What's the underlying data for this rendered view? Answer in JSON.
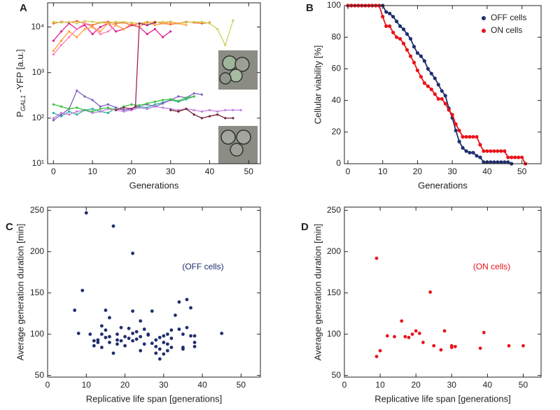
{
  "chart_data": [
    {
      "type": "line",
      "panel": "A",
      "x_label": "Generations",
      "y_label": {
        "main": "P",
        "subscript": "GAL1",
        "rest": " -YFP  [a.u.]"
      },
      "ylog": true,
      "xlim": [
        -1.5,
        53
      ],
      "ylim": [
        10,
        34000
      ],
      "xticks": [
        0,
        10,
        20,
        30,
        40,
        50
      ],
      "yticks": [
        {
          "value": 10,
          "label": "10¹"
        },
        {
          "value": 100,
          "label": "10²"
        },
        {
          "value": 1000,
          "label": "10³"
        },
        {
          "value": 10000,
          "label": "10⁴"
        }
      ],
      "series": [
        {
          "color": "#f07020",
          "x": [
            0,
            2,
            4,
            6,
            8,
            10,
            12,
            14,
            16,
            18,
            20,
            22,
            24,
            26,
            28,
            30,
            32,
            34,
            36,
            38,
            40
          ],
          "values": [
            12000,
            13000,
            12500,
            13500,
            12000,
            11000,
            12500,
            13000,
            12000,
            12500,
            11000,
            12000,
            12500,
            13000,
            12000,
            11500,
            12000,
            13000,
            12500,
            12000,
            12500
          ]
        },
        {
          "color": "#e0208c",
          "x": [
            0,
            2,
            4,
            6,
            8,
            10,
            12,
            14,
            16,
            18,
            20,
            22,
            24,
            26,
            28,
            30
          ],
          "values": [
            5000,
            8000,
            12000,
            9000,
            11000,
            7000,
            10000,
            12000,
            8000,
            9000,
            11000,
            10000,
            7000,
            9000,
            6000,
            8000
          ]
        },
        {
          "color": "#d0d060",
          "x": [
            0,
            2,
            4,
            6,
            8,
            10,
            12,
            14,
            16,
            18,
            20,
            22,
            24,
            26,
            28,
            30,
            32,
            34,
            36,
            38,
            40,
            42,
            44,
            46
          ],
          "values": [
            13000,
            12500,
            13000,
            12000,
            13500,
            13000,
            12500,
            12000,
            13000,
            13000,
            12500,
            12000,
            13000,
            12500,
            13000,
            13000,
            12000,
            12500,
            13000,
            13000,
            12000,
            9000,
            4000,
            14000
          ]
        },
        {
          "color": "#ff80c0",
          "x": [
            0,
            2,
            4,
            6,
            8,
            10,
            12,
            14,
            16,
            18,
            20,
            22
          ],
          "values": [
            2500,
            4000,
            6000,
            9000,
            12000,
            10000,
            7000,
            8000,
            11000,
            9000,
            12000,
            10000
          ]
        },
        {
          "color": "#ffa040",
          "x": [
            0,
            2,
            4,
            6,
            8,
            10,
            12,
            14,
            16,
            18,
            20,
            22,
            24,
            26,
            28,
            30,
            32,
            34
          ],
          "values": [
            3000,
            5000,
            8000,
            6000,
            9000,
            10000,
            8000,
            12000,
            11000,
            9000,
            12000,
            10000,
            13000,
            11000,
            12000,
            13000,
            12000,
            11000
          ]
        },
        {
          "color": "#30b0a0",
          "x": [
            0,
            2,
            4,
            6,
            8,
            10,
            12,
            14,
            16,
            18,
            20,
            22,
            24,
            26,
            28,
            30,
            32,
            34,
            36
          ],
          "values": [
            130,
            110,
            140,
            120,
            150,
            160,
            140,
            130,
            170,
            150,
            160,
            180,
            170,
            200,
            220,
            250,
            230,
            260,
            300
          ]
        },
        {
          "color": "#8060c0",
          "x": [
            0,
            2,
            4,
            6,
            8,
            10,
            12,
            14,
            16,
            18,
            20,
            22,
            24,
            26,
            28,
            30,
            32,
            34,
            36,
            38
          ],
          "values": [
            90,
            120,
            160,
            400,
            300,
            250,
            180,
            200,
            170,
            150,
            160,
            190,
            200,
            180,
            210,
            250,
            300,
            280,
            350,
            330
          ]
        },
        {
          "color": "#c080e0",
          "x": [
            0,
            2,
            4,
            6,
            8,
            10,
            12,
            14,
            16,
            18,
            20,
            22,
            24,
            26,
            28,
            30,
            32,
            34,
            36,
            38,
            40,
            42,
            44,
            46,
            48
          ],
          "values": [
            100,
            130,
            120,
            140,
            150,
            130,
            140,
            160,
            150,
            140,
            150,
            170,
            160,
            180,
            170,
            160,
            150,
            160,
            150,
            140,
            150,
            140,
            150,
            150,
            150
          ]
        },
        {
          "color": "#40c040",
          "x": [
            0,
            2,
            4,
            6,
            8,
            10,
            12,
            14,
            16,
            18,
            20,
            22,
            24,
            26,
            28,
            30,
            32,
            34,
            36
          ],
          "values": [
            200,
            180,
            160,
            170,
            150,
            140,
            160,
            170,
            150,
            180,
            200,
            190,
            210,
            230,
            250,
            260,
            240,
            280,
            300
          ]
        },
        {
          "color": "#a02060",
          "x": [
            16,
            18,
            20,
            21,
            22,
            24,
            26
          ],
          "values": [
            150,
            170,
            160,
            180,
            12000,
            11000,
            12500
          ]
        },
        {
          "color": "#702030",
          "x": [
            30,
            32,
            34,
            36,
            38,
            40,
            42,
            44,
            46
          ],
          "values": [
            150,
            140,
            160,
            120,
            100,
            110,
            120,
            100,
            100
          ]
        }
      ]
    },
    {
      "type": "line",
      "panel": "B",
      "x_label": "Generations",
      "y_label": "Cellular viability [%]",
      "markers": true,
      "legend": "top-right",
      "xlim": [
        -1,
        55.5
      ],
      "ylim": [
        0,
        100
      ],
      "xticks": [
        0,
        10,
        20,
        30,
        40,
        50
      ],
      "yticks": [
        0,
        20,
        40,
        60,
        80,
        100
      ],
      "series": [
        {
          "name": "OFF cells",
          "color": "#1f2f6e",
          "x": [
            0,
            1,
            2,
            3,
            4,
            5,
            6,
            7,
            8,
            9,
            10,
            11,
            12,
            13,
            14,
            15,
            16,
            17,
            18,
            19,
            20,
            21,
            22,
            23,
            24,
            25,
            26,
            27,
            28,
            29,
            30,
            31,
            32,
            33,
            34,
            35,
            36,
            37,
            38,
            39,
            40,
            41,
            42,
            43,
            44,
            45,
            46,
            47
          ],
          "values": [
            100,
            100,
            100,
            100,
            100,
            100,
            100,
            100,
            100,
            100,
            100,
            96,
            95,
            93,
            90,
            87,
            85,
            82,
            79,
            74,
            70,
            68,
            65,
            60,
            57,
            54,
            50,
            46,
            43,
            35,
            29,
            21,
            14,
            10,
            8,
            7,
            7,
            5,
            4,
            1,
            1,
            1,
            1,
            1,
            1,
            1,
            1,
            0
          ]
        },
        {
          "name": "ON cells",
          "color": "#e8141b",
          "x": [
            0,
            1,
            2,
            3,
            4,
            5,
            6,
            7,
            8,
            9,
            10,
            11,
            12,
            13,
            14,
            15,
            16,
            17,
            18,
            19,
            20,
            21,
            22,
            23,
            24,
            25,
            26,
            27,
            28,
            29,
            30,
            31,
            32,
            33,
            34,
            35,
            36,
            37,
            38,
            39,
            40,
            41,
            42,
            43,
            44,
            45,
            46,
            47,
            48,
            49,
            50,
            51
          ],
          "values": [
            100,
            100,
            100,
            100,
            100,
            100,
            100,
            100,
            100,
            100,
            93,
            87,
            87,
            83,
            80,
            79,
            76,
            72,
            68,
            64,
            59,
            55,
            51,
            49,
            47,
            44,
            41,
            41,
            38,
            34,
            31,
            25,
            21,
            17,
            17,
            17,
            17,
            17,
            12,
            8,
            8,
            8,
            8,
            8,
            8,
            8,
            4,
            4,
            4,
            4,
            4,
            0
          ]
        }
      ]
    },
    {
      "type": "scatter",
      "panel": "C",
      "x_label": "Replicative life span [generations]",
      "y_label": "Average generation duration [min]",
      "annotation": "(OFF cells)",
      "color": "#1f2f6e",
      "xlim": [
        0,
        55
      ],
      "ylim": [
        48,
        254
      ],
      "xticks": [
        0,
        10,
        20,
        30,
        40,
        50
      ],
      "yticks": [
        50,
        100,
        150,
        200,
        250
      ],
      "x": [
        10,
        17,
        22,
        9,
        7,
        8,
        15,
        16,
        12,
        13,
        13,
        14,
        14,
        14,
        15,
        15,
        16,
        16,
        17,
        18,
        18,
        18,
        19,
        19,
        20,
        21,
        21,
        22,
        22,
        22,
        23,
        23,
        24,
        24,
        24,
        25,
        25,
        26,
        26,
        27,
        27,
        28,
        28,
        28,
        29,
        29,
        29,
        30,
        30,
        30,
        31,
        31,
        31,
        32,
        32,
        32,
        33,
        34,
        34,
        35,
        35,
        35,
        36,
        36,
        37,
        37,
        38,
        38,
        38,
        45,
        11,
        12,
        20
      ],
      "values": [
        247,
        231,
        198,
        153,
        129,
        101,
        129,
        120,
        86,
        90,
        93,
        110,
        100,
        84,
        96,
        105,
        90,
        97,
        77,
        100,
        93,
        88,
        108,
        92,
        86,
        107,
        95,
        128,
        101,
        92,
        94,
        103,
        116,
        97,
        80,
        106,
        88,
        99,
        100,
        89,
        128,
        93,
        77,
        85,
        70,
        82,
        96,
        98,
        90,
        76,
        100,
        88,
        80,
        95,
        84,
        105,
        123,
        139,
        106,
        84,
        100,
        82,
        142,
        108,
        132,
        98,
        98,
        90,
        85,
        101,
        100,
        92,
        97
      ]
    },
    {
      "type": "scatter",
      "panel": "D",
      "x_label": "Replicative life span [generations]",
      "y_label": "Average generation duration [min]",
      "annotation": "(ON cells)",
      "color": "#e8141b",
      "xlim": [
        0,
        55
      ],
      "ylim": [
        48,
        254
      ],
      "xticks": [
        0,
        10,
        20,
        30,
        40,
        50
      ],
      "yticks": [
        50,
        100,
        150,
        200,
        250
      ],
      "x": [
        9,
        9,
        10,
        12,
        14,
        16,
        17,
        18,
        19,
        20,
        21,
        22,
        24,
        25,
        27,
        28,
        30,
        30,
        31,
        38,
        39,
        46,
        50
      ],
      "values": [
        192,
        73,
        80,
        98,
        97,
        116,
        97,
        96,
        100,
        104,
        101,
        90,
        151,
        86,
        81,
        104,
        84,
        86,
        85,
        83,
        102,
        86,
        86
      ]
    }
  ]
}
